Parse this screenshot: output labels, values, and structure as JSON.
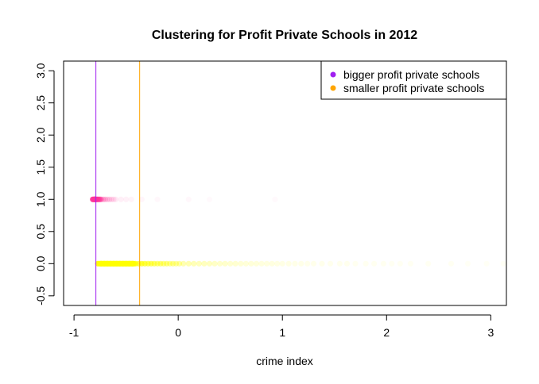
{
  "chart_data": {
    "type": "scatter",
    "title": "Clustering for Profit Private Schools in 2012",
    "xlabel": "crime index",
    "ylabel": "",
    "xlim": [
      -1.1,
      3.15
    ],
    "ylim": [
      -0.65,
      3.15
    ],
    "xticks": [
      -1,
      0,
      1,
      2,
      3
    ],
    "yticks": [
      -0.5,
      0.0,
      0.5,
      1.0,
      1.5,
      2.0,
      2.5,
      3.0
    ],
    "ytick_labels": [
      "-0.5",
      "0.0",
      "0.5",
      "1.0",
      "1.5",
      "2.0",
      "2.5",
      "3.0"
    ],
    "grid": false,
    "legend_position": "top-right",
    "legend": [
      {
        "label": "bigger profit private schools",
        "color": "#A020F0"
      },
      {
        "label": "smaller profit private schools",
        "color": "#FFA500"
      }
    ],
    "vlines": [
      {
        "x": -0.79,
        "color": "#A020F0"
      },
      {
        "x": -0.37,
        "color": "#FFA500"
      }
    ],
    "series": [
      {
        "y": 1.0,
        "color": "#FF3399",
        "x": [
          -0.82,
          -0.81,
          -0.8,
          -0.79,
          -0.78,
          -0.77,
          -0.76,
          -0.75,
          -0.74,
          -0.72,
          -0.7,
          -0.68,
          -0.66,
          -0.64,
          -0.62,
          -0.6,
          -0.55,
          -0.5,
          -0.45,
          -0.35,
          -0.2,
          0.1,
          0.3,
          0.93
        ],
        "alpha": [
          0.9,
          0.9,
          0.85,
          0.85,
          0.8,
          0.7,
          0.6,
          0.5,
          0.4,
          0.3,
          0.25,
          0.2,
          0.18,
          0.15,
          0.12,
          0.1,
          0.08,
          0.07,
          0.06,
          0.05,
          0.04,
          0.04,
          0.03,
          0.03
        ]
      },
      {
        "y": 0.0,
        "color": "#FFFF00",
        "x": [
          -0.77,
          -0.74,
          -0.71,
          -0.68,
          -0.65,
          -0.62,
          -0.59,
          -0.56,
          -0.53,
          -0.5,
          -0.47,
          -0.44,
          -0.41,
          -0.38,
          -0.35,
          -0.32,
          -0.29,
          -0.26,
          -0.23,
          -0.2,
          -0.17,
          -0.14,
          -0.11,
          -0.08,
          -0.05,
          -0.02,
          0.01,
          0.05,
          0.1,
          0.15,
          0.2,
          0.25,
          0.3,
          0.35,
          0.4,
          0.45,
          0.5,
          0.55,
          0.6,
          0.65,
          0.7,
          0.75,
          0.8,
          0.85,
          0.9,
          0.95,
          1.0,
          1.06,
          1.12,
          1.18,
          1.24,
          1.3,
          1.38,
          1.46,
          1.55,
          1.62,
          1.7,
          1.8,
          1.88,
          1.97,
          2.05,
          2.13,
          2.23,
          2.4,
          2.62,
          2.78,
          2.96,
          3.12
        ],
        "alpha": [
          0.9,
          0.9,
          0.9,
          0.9,
          0.9,
          0.9,
          0.85,
          0.85,
          0.85,
          0.8,
          0.8,
          0.75,
          0.75,
          0.7,
          0.7,
          0.65,
          0.6,
          0.6,
          0.55,
          0.5,
          0.5,
          0.45,
          0.45,
          0.4,
          0.4,
          0.35,
          0.35,
          0.3,
          0.3,
          0.28,
          0.26,
          0.25,
          0.24,
          0.22,
          0.2,
          0.2,
          0.18,
          0.18,
          0.16,
          0.15,
          0.15,
          0.14,
          0.13,
          0.12,
          0.12,
          0.11,
          0.1,
          0.1,
          0.09,
          0.09,
          0.08,
          0.08,
          0.08,
          0.07,
          0.07,
          0.07,
          0.06,
          0.06,
          0.06,
          0.06,
          0.05,
          0.05,
          0.05,
          0.05,
          0.05,
          0.04,
          0.04,
          0.04
        ]
      }
    ]
  }
}
